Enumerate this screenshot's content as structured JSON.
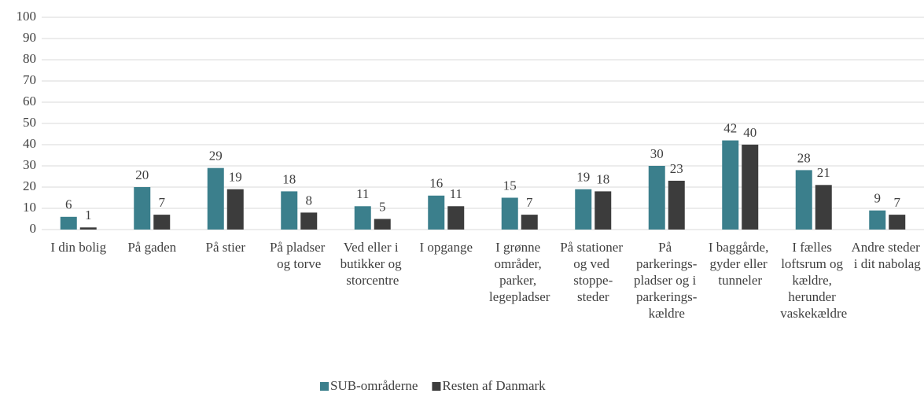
{
  "chart_data": {
    "type": "bar",
    "categories": [
      "I din bolig",
      "På gaden",
      "På stier",
      "På pladser og torve",
      "Ved eller i butikker og storcentre",
      "I opgange",
      "I grønne områder, parker, legepladser",
      "På stationer og ved stoppe-steder",
      "På parkerings-pladser og i parkerings-kældre",
      "I baggårde, gyder eller tunneler",
      "I fælles loftsrum og kældre, herunder vaskekældre",
      "Andre steder i dit nabolag"
    ],
    "series": [
      {
        "name": "SUB-områderne",
        "color": "#3b7f8c",
        "values": [
          6,
          20,
          29,
          18,
          11,
          16,
          15,
          19,
          30,
          42,
          28,
          9
        ]
      },
      {
        "name": "Resten af Danmark",
        "color": "#3c3c3c",
        "values": [
          1,
          7,
          19,
          8,
          5,
          11,
          7,
          18,
          23,
          40,
          21,
          7
        ]
      }
    ],
    "ylim": [
      0,
      100
    ],
    "yticks": [
      0,
      10,
      20,
      30,
      40,
      50,
      60,
      70,
      80,
      90,
      100
    ],
    "grid": true,
    "legend": "bottom"
  }
}
